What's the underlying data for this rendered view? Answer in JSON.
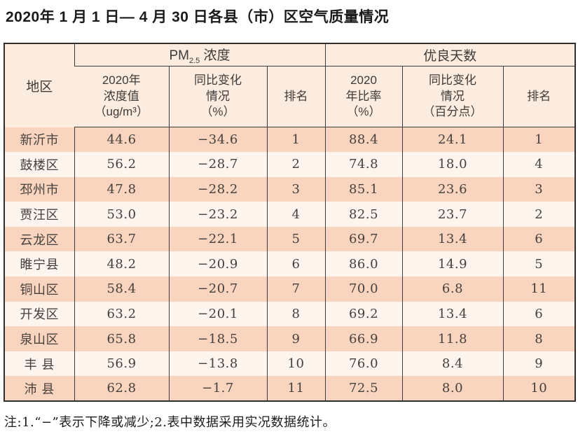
{
  "page": {
    "title": "2020年 1 月 1 日— 4 月 30 日各县（市）区空气质量情况",
    "note": "注:1.“−”表示下降或减少;2.表中数据采用实况数据统计。"
  },
  "table": {
    "header": {
      "region": "地区",
      "pm25": {
        "prefix": "PM",
        "sub": "2.5",
        "suffix": " 浓度"
      },
      "good_days": "优良天数",
      "sub_cols": [
        "2020年\n浓度值\n（ug/m³）",
        "同比变化\n情况\n（%）",
        "排名",
        "2020\n年比率\n（%）",
        "同比变化\n情况\n（百分点）",
        "排名"
      ]
    },
    "rows": [
      [
        "新沂市",
        "44.6",
        "−34.6",
        "1",
        "88.4",
        "24.1",
        "1"
      ],
      [
        "鼓楼区",
        "56.2",
        "−28.7",
        "2",
        "74.8",
        "18.0",
        "4"
      ],
      [
        "邳州市",
        "47.8",
        "−28.2",
        "3",
        "85.1",
        "23.6",
        "3"
      ],
      [
        "贾汪区",
        "53.0",
        "−23.2",
        "4",
        "82.5",
        "23.7",
        "2"
      ],
      [
        "云龙区",
        "63.7",
        "−22.1",
        "5",
        "69.7",
        "13.4",
        "6"
      ],
      [
        "睢宁县",
        "48.2",
        "−20.9",
        "6",
        "86.0",
        "14.9",
        "5"
      ],
      [
        "铜山区",
        "58.4",
        "−20.7",
        "7",
        "70.0",
        "6.8",
        "11"
      ],
      [
        "开发区",
        "63.2",
        "−20.1",
        "8",
        "69.2",
        "13.4",
        "6"
      ],
      [
        "泉山区",
        "65.8",
        "−18.5",
        "9",
        "66.9",
        "11.8",
        "8"
      ],
      [
        "丰 县",
        "56.9",
        "−13.8",
        "10",
        "76.0",
        "8.4",
        "9"
      ],
      [
        "沛 县",
        "62.8",
        "−1.7",
        "11",
        "72.5",
        "8.0",
        "10"
      ]
    ],
    "colors": {
      "row_peach": "#f9d4bf",
      "row_light": "#fdf5ed",
      "header_bg": "#fcebdf",
      "border": "#3c3c3c"
    }
  }
}
